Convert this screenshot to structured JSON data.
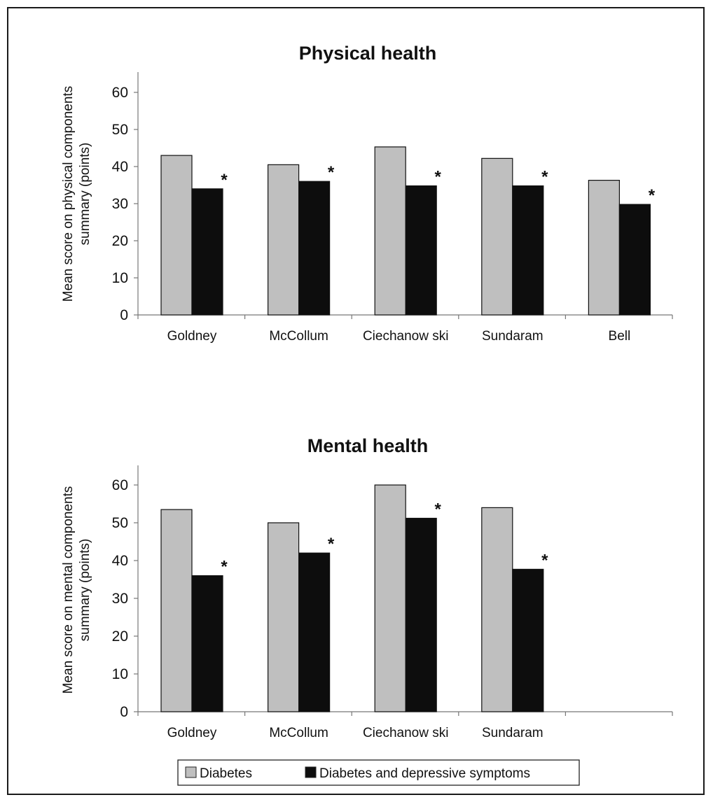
{
  "chart_data": [
    {
      "type": "bar",
      "title": "Physical health",
      "ylabel": [
        "Mean score on physical components",
        "summary (points)"
      ],
      "ylim": [
        0,
        60
      ],
      "yticks": [
        0,
        10,
        20,
        30,
        40,
        50,
        60
      ],
      "categories": [
        "Goldney",
        "McCollum",
        "Ciechanow ski",
        "Sundaram",
        "Bell"
      ],
      "series": [
        {
          "name": "Diabetes",
          "color": "#bfbfbf",
          "values": [
            43,
            40.5,
            45.3,
            42.2,
            36.3
          ]
        },
        {
          "name": "Diabetes and depressive symptoms",
          "color": "#0d0d0d",
          "values": [
            34,
            36,
            34.8,
            34.8,
            29.8
          ]
        }
      ],
      "annotation_marker": "*"
    },
    {
      "type": "bar",
      "title": "Mental health",
      "ylabel": [
        "Mean score on mental components",
        "summary (points)"
      ],
      "ylim": [
        0,
        60
      ],
      "yticks": [
        0,
        10,
        20,
        30,
        40,
        50,
        60
      ],
      "categories": [
        "Goldney",
        "McCollum",
        "Ciechanow ski",
        "Sundaram"
      ],
      "series": [
        {
          "name": "Diabetes",
          "color": "#bfbfbf",
          "values": [
            53.5,
            50,
            60,
            54
          ]
        },
        {
          "name": "Diabetes and depressive symptoms",
          "color": "#0d0d0d",
          "values": [
            36,
            42,
            51.2,
            37.7
          ]
        }
      ],
      "annotation_marker": "*"
    }
  ],
  "legend": {
    "items": [
      {
        "label": "Diabetes",
        "color": "#bfbfbf"
      },
      {
        "label": "Diabetes and depressive symptoms",
        "color": "#0d0d0d"
      }
    ]
  }
}
